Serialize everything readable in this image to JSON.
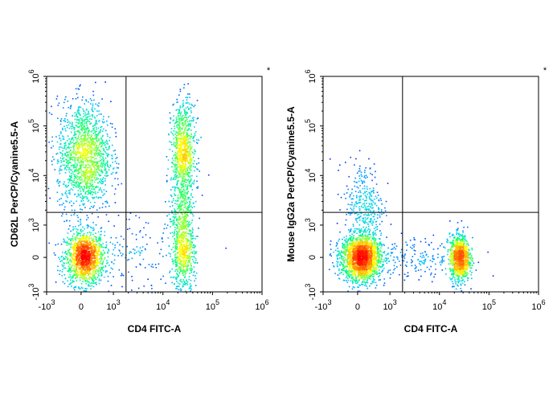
{
  "chart_data": [
    {
      "type": "scatter",
      "xlabel": "CD4 FITC-A",
      "ylabel": "CD62L PerCP/Cyanine5.5-A",
      "marker": "*",
      "x_ticks": [
        "-10^3",
        "0",
        "10^3",
        "10^4",
        "10^5",
        "10^6"
      ],
      "y_ticks": [
        "-10^3",
        "0",
        "10^3",
        "10^4",
        "10^5",
        "10^6"
      ],
      "scale": "biexponential",
      "density_colormap": [
        "#0000ff",
        "#00c8ff",
        "#00ff80",
        "#ffff00",
        "#ff7f00",
        "#ff0000"
      ],
      "gate_lines": {
        "x": 1800,
        "y": 1800
      },
      "populations": [
        {
          "x_center": 100,
          "y_center": 0,
          "x_spread": 300,
          "y_spread": 400,
          "count": 1400
        },
        {
          "x_center": 100,
          "y_center": 25000,
          "x_spread": 400,
          "y_spread": 0.55,
          "count": 1500
        },
        {
          "x_center": 25000,
          "y_center": 30000,
          "x_spread": 0.12,
          "y_spread": 0.5,
          "count": 900
        },
        {
          "x_center": 25000,
          "y_center": 0,
          "x_spread": 0.12,
          "y_spread": 500,
          "count": 500
        },
        {
          "x_center": 25000,
          "y_center": 1500,
          "x_spread": 0.12,
          "y_spread": 0.35,
          "count": 350
        },
        {
          "x_center": 3000,
          "y_center": 100,
          "x_spread": 0.5,
          "y_spread": 600,
          "count": 150
        }
      ]
    },
    {
      "type": "scatter",
      "xlabel": "CD4 FITC-A",
      "ylabel": "Mouse IgG2a PerCP/Cyanine5.5-A",
      "marker": "*",
      "x_ticks": [
        "-10^3",
        "0",
        "10^3",
        "10^4",
        "10^5",
        "10^6"
      ],
      "y_ticks": [
        "-10^3",
        "0",
        "10^3",
        "10^4",
        "10^5",
        "10^6"
      ],
      "scale": "biexponential",
      "density_colormap": [
        "#0000ff",
        "#00c8ff",
        "#00ff80",
        "#ffff00",
        "#ff7f00",
        "#ff0000"
      ],
      "gate_lines": {
        "x": 1800,
        "y": 1800
      },
      "populations": [
        {
          "x_center": 100,
          "y_center": 0,
          "x_spread": 300,
          "y_spread": 350,
          "count": 2000
        },
        {
          "x_center": 200,
          "y_center": 2500,
          "x_spread": 300,
          "y_spread": 0.45,
          "count": 350
        },
        {
          "x_center": 25000,
          "y_center": 0,
          "x_spread": 0.1,
          "y_spread": 350,
          "count": 1000
        },
        {
          "x_center": 3000,
          "y_center": 0,
          "x_spread": 0.5,
          "y_spread": 300,
          "count": 200
        }
      ]
    }
  ]
}
